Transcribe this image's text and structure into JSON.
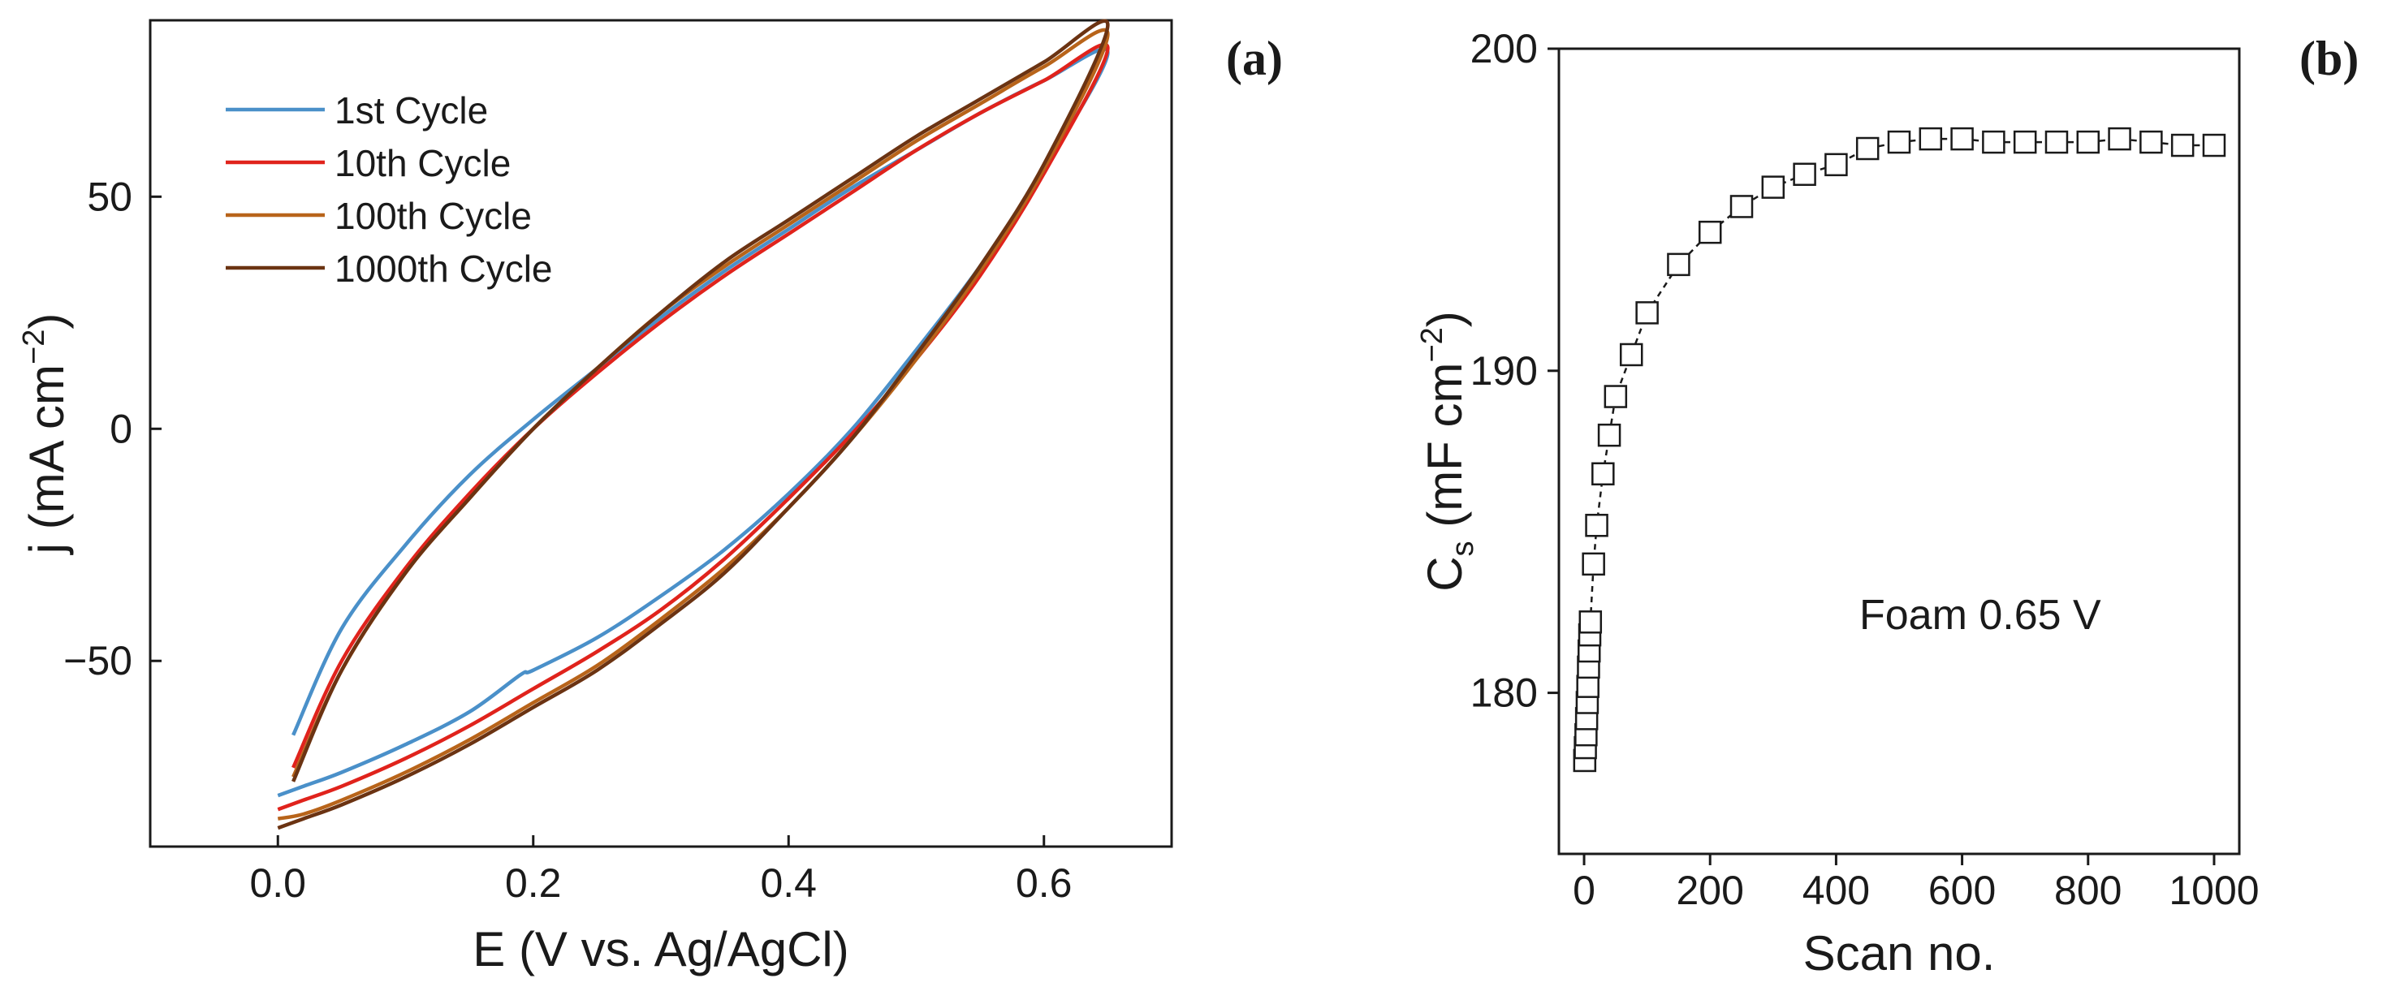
{
  "chart_data": [
    {
      "panel_label": "(a)",
      "type": "line",
      "xlabel": "E (V vs. Ag/AgCl)",
      "ylabel": {
        "prefix": "j (mA cm",
        "sup": "−2",
        "suffix": ")"
      },
      "xlim": [
        -0.1,
        0.7
      ],
      "ylim": [
        -90,
        88
      ],
      "xticks": [
        0.0,
        0.2,
        0.4,
        0.6
      ],
      "xtick_labels": [
        "0.0",
        "0.2",
        "0.4",
        "0.6"
      ],
      "yticks": [
        -50,
        0,
        50
      ],
      "ytick_labels": [
        "−50",
        "0",
        "50"
      ],
      "legend_position": "top-left",
      "series": [
        {
          "name": "1st Cycle",
          "color": "#4a90c9",
          "x": [
            0.012,
            0.05,
            0.1,
            0.15,
            0.2,
            0.25,
            0.3,
            0.35,
            0.4,
            0.45,
            0.5,
            0.55,
            0.6,
            0.65,
            0.6,
            0.55,
            0.5,
            0.45,
            0.4,
            0.35,
            0.3,
            0.25,
            0.2,
            0.19,
            0.15,
            0.1,
            0.05,
            0.02,
            0.0
          ],
          "y": [
            -66,
            -43,
            -25,
            -10,
            2,
            13,
            24,
            34,
            43,
            52,
            60,
            68,
            75,
            81,
            56,
            35,
            17,
            0,
            -14,
            -26,
            -36,
            -45,
            -52,
            -53,
            -61,
            -68,
            -74,
            -77,
            -79
          ]
        },
        {
          "name": "10th Cycle",
          "color": "#e0231c",
          "x": [
            0.012,
            0.05,
            0.1,
            0.15,
            0.2,
            0.25,
            0.3,
            0.35,
            0.4,
            0.45,
            0.5,
            0.55,
            0.6,
            0.65,
            0.6,
            0.55,
            0.5,
            0.45,
            0.4,
            0.35,
            0.3,
            0.25,
            0.2,
            0.15,
            0.1,
            0.05,
            0.02,
            0.0
          ],
          "y": [
            -73,
            -50,
            -30,
            -14,
            0,
            12,
            23,
            33,
            42,
            51,
            60,
            68,
            75,
            82,
            55,
            33,
            15,
            -1,
            -15,
            -28,
            -39,
            -48,
            -56,
            -64,
            -71,
            -77,
            -80,
            -82
          ]
        },
        {
          "name": "100th Cycle",
          "color": "#b8641a",
          "x": [
            0.012,
            0.05,
            0.1,
            0.15,
            0.2,
            0.25,
            0.3,
            0.35,
            0.4,
            0.45,
            0.5,
            0.55,
            0.6,
            0.65,
            0.6,
            0.55,
            0.5,
            0.45,
            0.4,
            0.35,
            0.3,
            0.25,
            0.2,
            0.15,
            0.1,
            0.05,
            0.02,
            0.0
          ],
          "y": [
            -75,
            -52,
            -31,
            -15,
            0,
            13,
            25,
            35,
            44,
            53,
            62,
            70,
            78,
            85,
            56,
            34,
            15,
            -2,
            -17,
            -30,
            -41,
            -51,
            -59,
            -67,
            -74,
            -80,
            -83,
            -84
          ]
        },
        {
          "name": "1000th Cycle",
          "color": "#6b3312",
          "x": [
            0.012,
            0.05,
            0.1,
            0.15,
            0.2,
            0.25,
            0.3,
            0.35,
            0.4,
            0.45,
            0.5,
            0.55,
            0.6,
            0.65,
            0.6,
            0.55,
            0.5,
            0.45,
            0.4,
            0.35,
            0.3,
            0.25,
            0.2,
            0.15,
            0.1,
            0.05,
            0.02,
            0.0
          ],
          "y": [
            -76,
            -52,
            -31,
            -15,
            0,
            13,
            25,
            36,
            45,
            54,
            63,
            71,
            79,
            87,
            57,
            35,
            16,
            -2,
            -17,
            -31,
            -42,
            -52,
            -60,
            -68,
            -75,
            -81,
            -84,
            -86
          ]
        }
      ]
    },
    {
      "panel_label": "(b)",
      "type": "scatter",
      "xlabel": "Scan no.",
      "ylabel": {
        "prefix": "C",
        "sub": "s",
        "middle": " (mF cm",
        "sup": "−2",
        "suffix": ")"
      },
      "xlim": [
        -40,
        1040
      ],
      "ylim": [
        175,
        200
      ],
      "xticks": [
        0,
        200,
        400,
        600,
        800,
        1000
      ],
      "xtick_labels": [
        "0",
        "200",
        "400",
        "600",
        "800",
        "1000"
      ],
      "yticks": [
        180,
        190,
        200
      ],
      "ytick_labels": [
        "180",
        "190",
        "200"
      ],
      "annotation": "Foam 0.65 V",
      "marker": "open-square",
      "connector": "dashed",
      "series": [
        {
          "x": [
            1,
            2,
            3,
            4,
            5,
            6,
            7,
            8,
            9,
            10,
            15,
            20,
            30,
            40,
            50,
            75,
            100,
            150,
            200,
            250,
            300,
            350,
            400,
            450,
            500,
            550,
            600,
            650,
            700,
            750,
            800,
            850,
            900,
            950,
            1000
          ],
          "y": [
            177.9,
            178.3,
            178.7,
            179.2,
            179.7,
            180.2,
            180.8,
            181.3,
            181.8,
            182.2,
            184.0,
            185.2,
            186.8,
            188.0,
            189.2,
            190.5,
            191.8,
            193.3,
            194.3,
            195.1,
            195.7,
            196.1,
            196.4,
            196.9,
            197.1,
            197.2,
            197.2,
            197.1,
            197.1,
            197.1,
            197.1,
            197.2,
            197.1,
            197.0,
            197.0
          ]
        }
      ]
    }
  ]
}
